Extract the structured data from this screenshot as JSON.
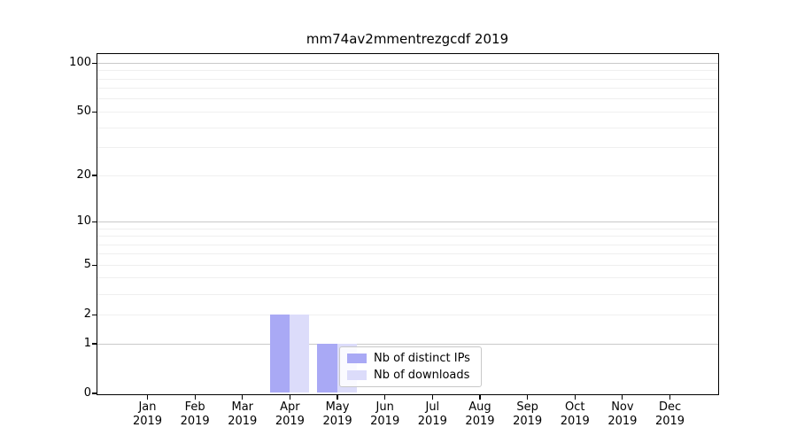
{
  "chart_data": {
    "type": "bar",
    "title": "mm74av2mmentrezgcdf 2019",
    "categories": [
      "Jan 2019",
      "Feb 2019",
      "Mar 2019",
      "Apr 2019",
      "May 2019",
      "Jun 2019",
      "Jul 2019",
      "Aug 2019",
      "Sep 2019",
      "Oct 2019",
      "Nov 2019",
      "Dec 2019"
    ],
    "series": [
      {
        "name": "Nb of distinct IPs",
        "key": "distinct-ips",
        "color": "#a9a9f5",
        "values": [
          0,
          0,
          0,
          2,
          1,
          0,
          0,
          0,
          0,
          0,
          0,
          0
        ]
      },
      {
        "name": "Nb of downloads",
        "key": "downloads",
        "color": "#dcdcfa",
        "values": [
          0,
          0,
          0,
          2,
          1,
          0,
          0,
          0,
          0,
          0,
          0,
          0
        ]
      }
    ],
    "xlabel": "",
    "ylabel": "",
    "y_ticks": [
      0,
      1,
      2,
      5,
      10,
      20,
      50,
      100
    ],
    "ylim": [
      0,
      113
    ],
    "y_scale": "log10(1+v)",
    "grid": {
      "orientation": "horizontal",
      "major_values": [
        1,
        10,
        100
      ],
      "minor_values": [
        2,
        3,
        4,
        5,
        6,
        7,
        8,
        9,
        20,
        30,
        40,
        50,
        60,
        70,
        80,
        90
      ],
      "major_color": "#c9c9c9",
      "minor_color": "#efefef"
    },
    "legend": {
      "position": "lower-center inside plot",
      "entries": [
        "Nb of distinct IPs",
        "Nb of downloads"
      ]
    }
  },
  "style_colors": {
    "background": "#ffffff",
    "spine": "#000000",
    "text": "#000000"
  }
}
